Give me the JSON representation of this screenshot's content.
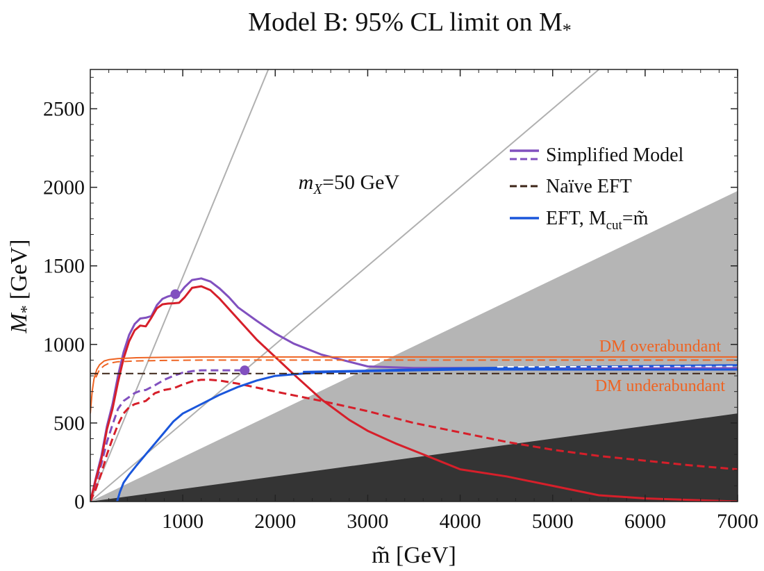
{
  "chart_data": {
    "type": "line",
    "title": "Model B: 95% CL limit on M",
    "title_sub": "*",
    "xlabel": "m̃ [GeV]",
    "ylabel": "M",
    "ylabel_sub": "*",
    "ylabel_unit": "[GeV]",
    "xlim": [
      0,
      7000
    ],
    "ylim": [
      0,
      2750
    ],
    "xticks": [
      1000,
      2000,
      3000,
      4000,
      5000,
      6000,
      7000
    ],
    "yticks": [
      0,
      500,
      1000,
      1500,
      2000,
      2500
    ],
    "grid": false,
    "legend_position": "top-right",
    "annotation": {
      "prefix": "m",
      "sub": "X",
      "suffix": "=50 GeV",
      "x": 2250,
      "y": 1990
    },
    "legend": {
      "simplified": "Simplified Model",
      "naive": "Naïve EFT",
      "eft_prefix": "EFT, M",
      "eft_sub": "cut",
      "eft_suffix": "=m̃"
    },
    "region_labels": {
      "over": "DM overabundant",
      "under": "DM underabundant"
    },
    "colors": {
      "purple": "#8150bf",
      "red": "#d61f2a",
      "blue": "#1a56db",
      "orange": "#ee6322",
      "naive": "#3c2417",
      "light_gray": "#b5b5b5",
      "dark_gray": "#343434",
      "guide": "#b0b0b0"
    },
    "shaded_regions": [
      {
        "name": "light-gray-region",
        "slope": 0.2824
      },
      {
        "name": "dark-gray-region",
        "slope": 0.0801
      }
    ],
    "guide_lines": [
      {
        "name": "steep-guide-line",
        "slope": 1.4286
      },
      {
        "name": "shallow-guide-line",
        "slope": 0.5
      }
    ],
    "markers": [
      {
        "name": "purple-solid-marker",
        "x": 920,
        "y": 1320
      },
      {
        "name": "purple-dashed-marker",
        "x": 1670,
        "y": 835
      }
    ],
    "series": [
      {
        "name": "simplified-model-solid-purple",
        "color": "purple",
        "dash": false,
        "width": 3,
        "x": [
          0,
          60,
          120,
          180,
          240,
          300,
          360,
          420,
          480,
          540,
          600,
          660,
          720,
          780,
          840,
          900,
          960,
          1020,
          1100,
          1200,
          1300,
          1400,
          1500,
          1600,
          1800,
          2000,
          2200,
          2500,
          3000,
          3500,
          4000,
          5000,
          6000,
          7000
        ],
        "y": [
          0,
          150,
          290,
          480,
          620,
          800,
          950,
          1060,
          1130,
          1165,
          1170,
          1180,
          1250,
          1290,
          1305,
          1315,
          1320,
          1365,
          1410,
          1420,
          1400,
          1355,
          1300,
          1235,
          1150,
          1070,
          1005,
          935,
          860,
          850,
          850,
          850,
          850,
          850
        ]
      },
      {
        "name": "simplified-model-dashed-purple",
        "color": "purple",
        "dash": true,
        "width": 3,
        "x": [
          0,
          60,
          120,
          180,
          240,
          300,
          360,
          420,
          480,
          540,
          600,
          700,
          800,
          900,
          1000,
          1100,
          1200,
          1300,
          1400,
          1500,
          1600,
          1700
        ],
        "y": [
          0,
          120,
          240,
          380,
          490,
          590,
          640,
          665,
          690,
          705,
          710,
          740,
          775,
          800,
          820,
          830,
          835,
          835,
          835,
          835,
          835,
          835
        ]
      },
      {
        "name": "simplified-model-solid-red",
        "color": "red",
        "dash": false,
        "width": 3,
        "x": [
          0,
          60,
          120,
          180,
          240,
          300,
          360,
          420,
          480,
          540,
          600,
          660,
          720,
          780,
          840,
          900,
          960,
          1020,
          1100,
          1200,
          1300,
          1400,
          1600,
          1800,
          2000,
          2200,
          2500,
          2800,
          3000,
          3300,
          3600,
          4000,
          4500,
          5000,
          5500,
          6000,
          7000
        ],
        "y": [
          0,
          140,
          270,
          460,
          590,
          760,
          910,
          1020,
          1090,
          1120,
          1115,
          1170,
          1230,
          1255,
          1260,
          1262,
          1265,
          1300,
          1360,
          1370,
          1345,
          1290,
          1160,
          1030,
          920,
          810,
          650,
          520,
          450,
          370,
          300,
          205,
          160,
          100,
          40,
          20,
          0
        ]
      },
      {
        "name": "simplified-model-dashed-red",
        "color": "red",
        "dash": true,
        "width": 3,
        "x": [
          0,
          60,
          120,
          180,
          240,
          300,
          360,
          420,
          480,
          540,
          600,
          700,
          800,
          900,
          1000,
          1100,
          1200,
          1300,
          1400,
          1600,
          1800,
          2000,
          2500,
          3000,
          3500,
          4000,
          4500,
          5000,
          5500,
          6000,
          6500,
          7000
        ],
        "y": [
          0,
          80,
          180,
          300,
          400,
          490,
          560,
          600,
          620,
          630,
          640,
          690,
          710,
          720,
          745,
          765,
          775,
          775,
          770,
          750,
          725,
          700,
          640,
          575,
          500,
          440,
          380,
          330,
          290,
          260,
          230,
          205
        ]
      },
      {
        "name": "eft-mcut-blue",
        "color": "blue",
        "dash": false,
        "width": 3,
        "x": [
          290,
          320,
          360,
          420,
          500,
          600,
          700,
          800,
          900,
          1000,
          1200,
          1400,
          1600,
          1800,
          2000,
          2300,
          2600,
          3000,
          4000,
          5000,
          6000,
          7000
        ],
        "y": [
          0,
          60,
          120,
          170,
          230,
          300,
          370,
          440,
          510,
          560,
          620,
          680,
          730,
          770,
          800,
          815,
          825,
          830,
          840,
          840,
          840,
          840
        ]
      },
      {
        "name": "eft-mcut-blue-upper",
        "color": "blue",
        "dash": false,
        "width": 3,
        "x": [
          2300,
          3000,
          4000,
          5000,
          6000,
          7000
        ],
        "y": [
          825,
          833,
          848,
          855,
          862,
          868
        ]
      },
      {
        "name": "relic-orange-solid",
        "color": "orange",
        "dash": false,
        "width": 2,
        "x": [
          0,
          20,
          40,
          70,
          100,
          150,
          200,
          300,
          500,
          800,
          1200,
          2000,
          3000,
          4000,
          5000,
          6000,
          7000
        ],
        "y": [
          560,
          700,
          780,
          840,
          870,
          895,
          903,
          910,
          915,
          918,
          920,
          920,
          920,
          920,
          920,
          920,
          920
        ]
      },
      {
        "name": "relic-orange-dashed",
        "color": "orange",
        "dash": true,
        "width": 2,
        "x": [
          60,
          100,
          150,
          200,
          300,
          500,
          800,
          1200,
          2000,
          3000,
          4000,
          5000,
          6000,
          7000
        ],
        "y": [
          790,
          840,
          865,
          880,
          890,
          895,
          898,
          900,
          900,
          900,
          900,
          900,
          900,
          900
        ]
      },
      {
        "name": "naive-eft-dashed",
        "color": "naive",
        "dash": true,
        "width": 2,
        "x": [
          0,
          7000
        ],
        "y": [
          815,
          815
        ]
      },
      {
        "name": "relic-band-dashed-white",
        "color": "white",
        "dash": true,
        "width": 2,
        "x": [
          4400,
          7000
        ],
        "y": [
          857,
          860
        ]
      }
    ]
  }
}
